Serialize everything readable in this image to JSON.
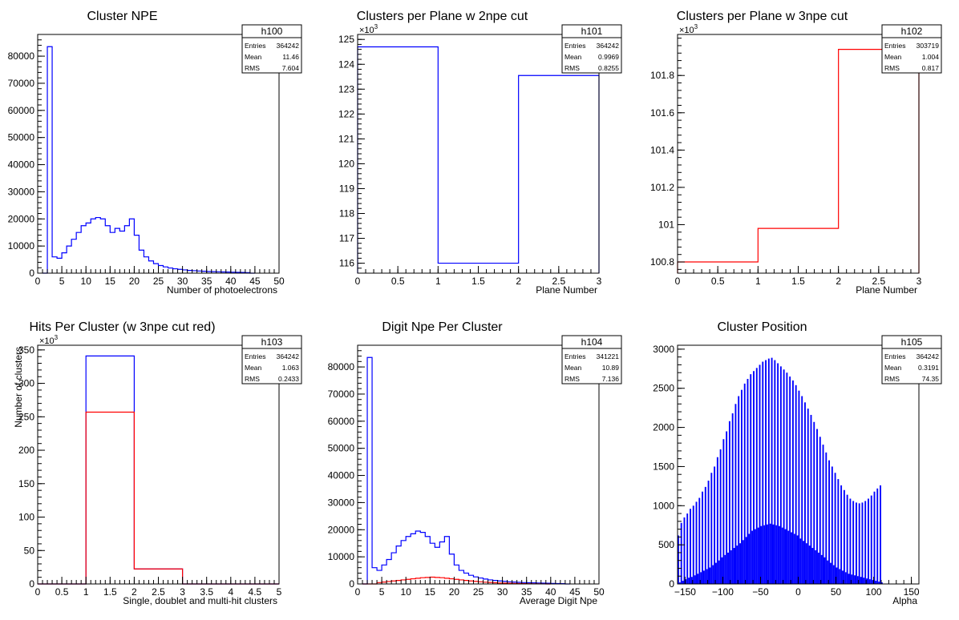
{
  "chart_data": [
    {
      "type": "bar",
      "title": "Cluster NPE",
      "xlabel": "Number of photoelectrons",
      "ylabel": "",
      "xlim": [
        0,
        50
      ],
      "ylim": [
        0,
        88000
      ],
      "x_ticks": [
        0,
        5,
        10,
        15,
        20,
        25,
        30,
        35,
        40,
        45,
        50
      ],
      "y_ticks": [
        0,
        10000,
        20000,
        30000,
        40000,
        50000,
        60000,
        70000,
        80000
      ],
      "y_exponent": "",
      "bins": {
        "start": 1,
        "width": 1
      },
      "series": [
        {
          "color": "#0000ff",
          "values": [
            0,
            83500,
            6000,
            5500,
            7500,
            10000,
            12500,
            15000,
            17500,
            18500,
            20000,
            20500,
            20000,
            17500,
            15000,
            16500,
            15500,
            17500,
            20000,
            14000,
            8500,
            6000,
            4500,
            3500,
            2800,
            2300,
            1900,
            1600,
            1400,
            1200,
            1000,
            900,
            800,
            700,
            600,
            550,
            500,
            450,
            400,
            350,
            300,
            250,
            200,
            0
          ]
        }
      ],
      "stats": {
        "name": "h100",
        "rows": [
          [
            "Entries",
            "364242"
          ],
          [
            "Mean",
            "11.46"
          ],
          [
            "RMS",
            "7.604"
          ]
        ]
      }
    },
    {
      "type": "bar",
      "title": "Clusters per Plane w 2npe cut",
      "xlabel": "Plane Number",
      "ylabel": "",
      "xlim": [
        0,
        3
      ],
      "ylim": [
        115600,
        125200
      ],
      "x_ticks": [
        0,
        0.5,
        1,
        1.5,
        2,
        2.5,
        3
      ],
      "y_ticks": [
        116000,
        117000,
        118000,
        119000,
        120000,
        121000,
        122000,
        123000,
        124000,
        125000
      ],
      "y_scale": 1000,
      "y_exponent": "3",
      "bins": {
        "start": 0,
        "width": 1
      },
      "series": [
        {
          "color": "#0000ff",
          "values": [
            124700,
            116000,
            123550
          ]
        }
      ],
      "stats": {
        "name": "h101",
        "rows": [
          [
            "Entries",
            "364242"
          ],
          [
            "Mean",
            "0.9969"
          ],
          [
            "RMS",
            "0.8255"
          ]
        ]
      }
    },
    {
      "type": "bar",
      "title": "Clusters per Plane w 3npe cut",
      "xlabel": "Plane Number",
      "ylabel": "",
      "xlim": [
        0,
        3
      ],
      "ylim": [
        100740,
        102020
      ],
      "x_ticks": [
        0,
        0.5,
        1,
        1.5,
        2,
        2.5,
        3
      ],
      "y_ticks": [
        100800,
        101000,
        101200,
        101400,
        101600,
        101800
      ],
      "y_scale": 1000,
      "y_exponent": "3",
      "bins": {
        "start": 0,
        "width": 1
      },
      "series": [
        {
          "color": "#ff0000",
          "values": [
            100800,
            100980,
            101940
          ]
        }
      ],
      "stats": {
        "name": "h102",
        "rows": [
          [
            "Entries",
            "303719"
          ],
          [
            "Mean",
            "1.004"
          ],
          [
            "RMS",
            "0.817"
          ]
        ]
      }
    },
    {
      "type": "bar",
      "title": "Hits Per Cluster (w 3npe cut red)",
      "xlabel": "Single, doublet and multi-hit clusters",
      "ylabel": "Number of clusters",
      "xlim": [
        0,
        5
      ],
      "ylim": [
        0,
        357000
      ],
      "x_ticks": [
        0,
        0.5,
        1,
        1.5,
        2,
        2.5,
        3,
        3.5,
        4,
        4.5,
        5
      ],
      "y_ticks": [
        0,
        50000,
        100000,
        150000,
        200000,
        250000,
        300000,
        350000
      ],
      "y_scale": 1000,
      "y_exponent": "3",
      "bins": {
        "start": 0,
        "width": 1
      },
      "series": [
        {
          "color": "#0000ff",
          "values": [
            0,
            341000,
            22500,
            0,
            0
          ]
        },
        {
          "color": "#ff0000",
          "values": [
            0,
            257000,
            22500,
            0,
            0
          ]
        }
      ],
      "stats": {
        "name": "h103",
        "rows": [
          [
            "Entries",
            "364242"
          ],
          [
            "Mean",
            "1.063"
          ],
          [
            "RMS",
            "0.2433"
          ]
        ]
      }
    },
    {
      "type": "bar",
      "title": "Digit Npe Per Cluster",
      "xlabel": "Average Digit Npe",
      "ylabel": "",
      "xlim": [
        0,
        50
      ],
      "ylim": [
        0,
        88000
      ],
      "x_ticks": [
        0,
        5,
        10,
        15,
        20,
        25,
        30,
        35,
        40,
        45,
        50
      ],
      "y_ticks": [
        0,
        10000,
        20000,
        30000,
        40000,
        50000,
        60000,
        70000,
        80000
      ],
      "y_exponent": "",
      "bins": {
        "start": 1,
        "width": 1
      },
      "series": [
        {
          "color": "#0000ff",
          "values": [
            0,
            83500,
            6000,
            5000,
            7000,
            9000,
            11500,
            14000,
            16000,
            17500,
            18500,
            19500,
            19000,
            17500,
            15000,
            13500,
            15500,
            17500,
            11000,
            7000,
            5000,
            4000,
            3200,
            2600,
            2200,
            1800,
            1500,
            1300,
            1100,
            950,
            800,
            700,
            600,
            500,
            450,
            400,
            350,
            300,
            250,
            200,
            150,
            100,
            0
          ]
        },
        {
          "color": "#ff0000",
          "values": [
            0,
            0,
            0,
            500,
            700,
            900,
            1100,
            1300,
            1500,
            1700,
            1900,
            2100,
            2300,
            2400,
            2500,
            2400,
            2300,
            2100,
            1900,
            1700,
            1500,
            1300,
            1100,
            950,
            800,
            650,
            550,
            450,
            350,
            300,
            250,
            200,
            150,
            100,
            80,
            60,
            40,
            20,
            0
          ]
        }
      ],
      "stats": {
        "name": "h104",
        "rows": [
          [
            "Entries",
            "341221"
          ],
          [
            "Mean",
            "10.89"
          ],
          [
            "RMS",
            "7.136"
          ]
        ]
      }
    },
    {
      "type": "bar",
      "title": "Cluster Position",
      "xlabel": "Alpha",
      "ylabel": "",
      "xlim": [
        -160,
        160
      ],
      "ylim": [
        0,
        3050
      ],
      "x_ticks": [
        -150,
        -100,
        -50,
        0,
        50,
        100,
        150
      ],
      "y_ticks": [
        0,
        500,
        1000,
        1500,
        2000,
        2500,
        3000
      ],
      "y_exponent": "",
      "bins": {
        "start": -160,
        "width": 2
      },
      "series": [
        {
          "color": "#0000ff",
          "pattern": "comb",
          "values": [
            620,
            20,
            780,
            40,
            850,
            60,
            900,
            80,
            960,
            90,
            1000,
            110,
            1050,
            130,
            1100,
            150,
            1180,
            170,
            1240,
            190,
            1320,
            210,
            1420,
            240,
            1500,
            270,
            1620,
            300,
            1720,
            340,
            1850,
            370,
            1950,
            400,
            2080,
            430,
            2180,
            460,
            2300,
            490,
            2400,
            520,
            2480,
            560,
            2560,
            600,
            2620,
            640,
            2680,
            680,
            2720,
            700,
            2760,
            720,
            2800,
            740,
            2840,
            750,
            2860,
            760,
            2880,
            770,
            2890,
            760,
            2860,
            750,
            2820,
            740,
            2780,
            720,
            2740,
            700,
            2700,
            680,
            2650,
            660,
            2600,
            640,
            2540,
            620,
            2470,
            580,
            2400,
            550,
            2320,
            520,
            2240,
            490,
            2160,
            460,
            2070,
            430,
            1980,
            400,
            1880,
            370,
            1780,
            340,
            1680,
            300,
            1580,
            270,
            1500,
            240,
            1420,
            210,
            1340,
            190,
            1260,
            170,
            1200,
            150,
            1140,
            130,
            1090,
            120,
            1060,
            110,
            1040,
            100,
            1030,
            90,
            1040,
            80,
            1060,
            70,
            1090,
            60,
            1130,
            50,
            1180,
            40,
            1220,
            30,
            1260,
            20
          ]
        }
      ],
      "stats": {
        "name": "h105",
        "rows": [
          [
            "Entries",
            "364242"
          ],
          [
            "Mean",
            "0.3191"
          ],
          [
            "RMS",
            "74.35"
          ]
        ]
      }
    }
  ]
}
